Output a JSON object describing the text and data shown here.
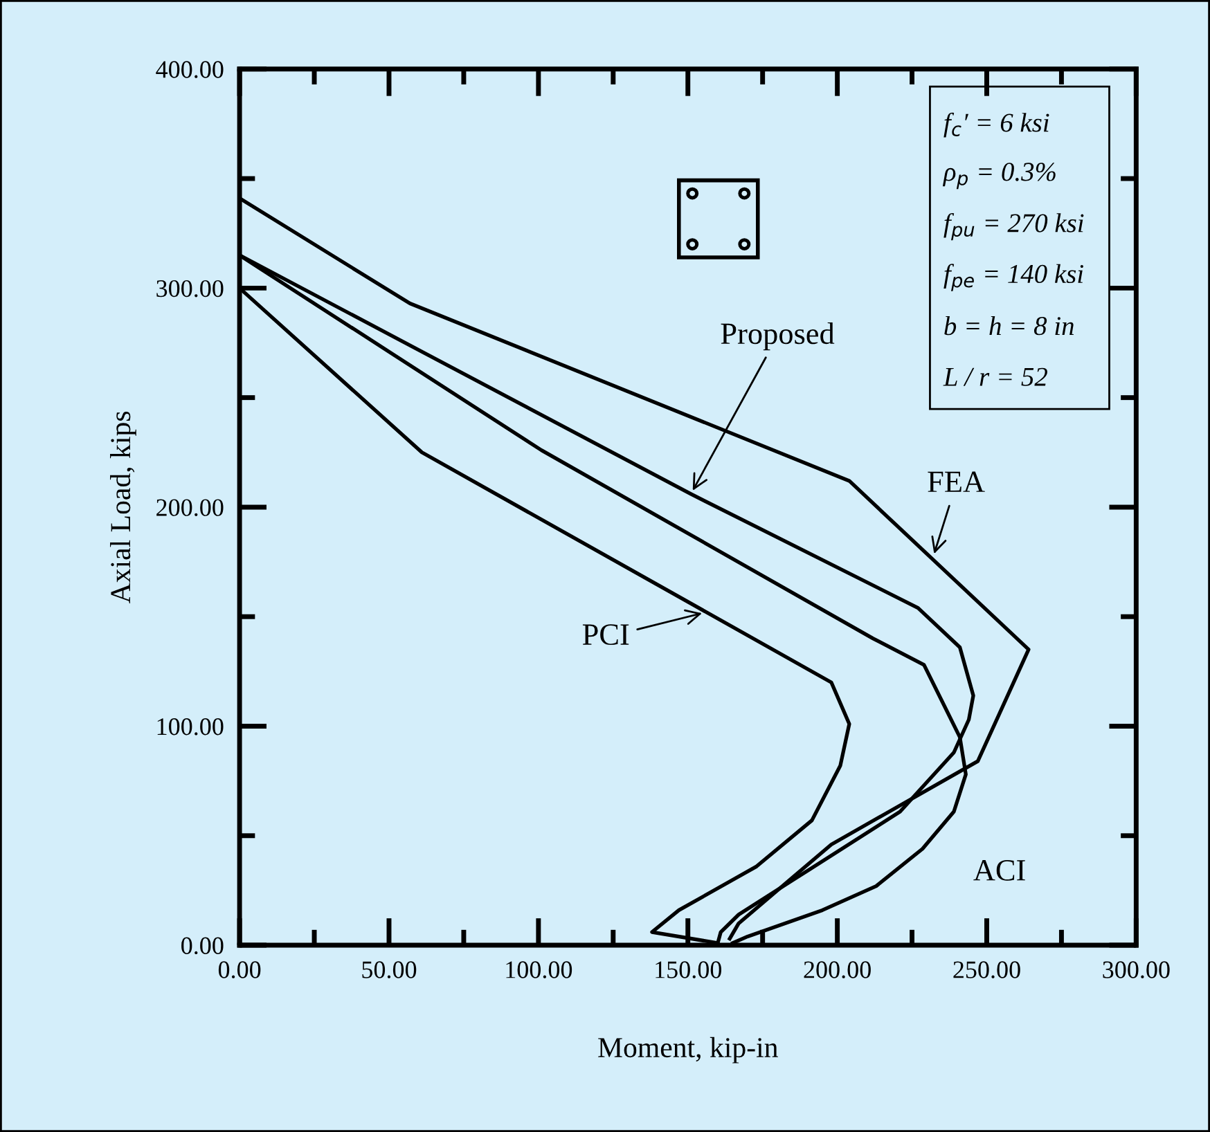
{
  "chart_data": {
    "type": "line",
    "xlabel": "Moment, kip-in",
    "ylabel": "Axial Load, kips",
    "series": [
      {
        "color": "#000000",
        "x": [
          0,
          57,
          204,
          264,
          247,
          198,
          167,
          164
        ],
        "values": [
          341,
          293,
          212,
          135,
          84,
          46,
          10,
          3
        ]
      },
      {
        "color": "#000000",
        "x": [
          0,
          151,
          227,
          241,
          245.5,
          244,
          239,
          221,
          190,
          167,
          161,
          160
        ],
        "values": [
          315,
          206,
          154,
          136,
          114,
          103,
          88,
          61,
          34,
          14,
          6,
          1
        ]
      },
      {
        "color": "#000000",
        "x": [
          0,
          101,
          212,
          229,
          241,
          243,
          239,
          228.5,
          213,
          195,
          170,
          165
        ],
        "values": [
          315,
          226,
          140,
          128,
          95,
          78,
          61,
          44,
          27,
          16,
          4,
          1
        ]
      },
      {
        "color": "#000000",
        "x": [
          0,
          61,
          198,
          204,
          201,
          191.5,
          173,
          147,
          138,
          160
        ],
        "values": [
          300,
          225,
          120,
          101,
          82,
          57,
          36,
          16,
          6,
          1
        ]
      }
    ],
    "xlim": [
      0,
      300
    ],
    "ylim": [
      0,
      400
    ],
    "xticks": [
      {
        "value": 0,
        "label": "0.00"
      },
      {
        "value": 25,
        "label": null
      },
      {
        "value": 50,
        "label": "50.00"
      },
      {
        "value": 75,
        "label": null
      },
      {
        "value": 100,
        "label": "100.00"
      },
      {
        "value": 125,
        "label": null
      },
      {
        "value": 150,
        "label": "150.00"
      },
      {
        "value": 175,
        "label": null
      },
      {
        "value": 200,
        "label": "200.00"
      },
      {
        "value": 225,
        "label": null
      },
      {
        "value": 250,
        "label": "250.00"
      },
      {
        "value": 275,
        "label": null
      },
      {
        "value": 300,
        "label": "300.00"
      }
    ],
    "yticks": [
      {
        "value": 0,
        "label": "0.00"
      },
      {
        "value": 50,
        "label": null
      },
      {
        "value": 100,
        "label": "100.00"
      },
      {
        "value": 150,
        "label": null
      },
      {
        "value": 200,
        "label": "200.00"
      },
      {
        "value": 250,
        "label": null
      },
      {
        "value": 300,
        "label": "300.00"
      },
      {
        "value": 350,
        "label": null
      },
      {
        "value": 400,
        "label": "400.00"
      }
    ],
    "grid": false,
    "marker": "none",
    "line_style": "solid",
    "annotations": [
      "f$_{c}$′ = 6 ksi",
      "ρ$_{p}$ = 0.3%",
      "f$_{pu}$ = 270 ksi",
      "f$_{pe}$ = 140 ksi",
      "b = h = 8 in",
      "L / r = 52",
      {
        "text": "Proposed",
        "x": 151,
        "y": 206
      },
      {
        "text": "FEA",
        "x": 232,
        "y": 177
      },
      {
        "text": "PCI",
        "x": 156,
        "y": 152
      },
      {
        "text": "ACI",
        "x": 226,
        "y": 40
      }
    ]
  }
}
